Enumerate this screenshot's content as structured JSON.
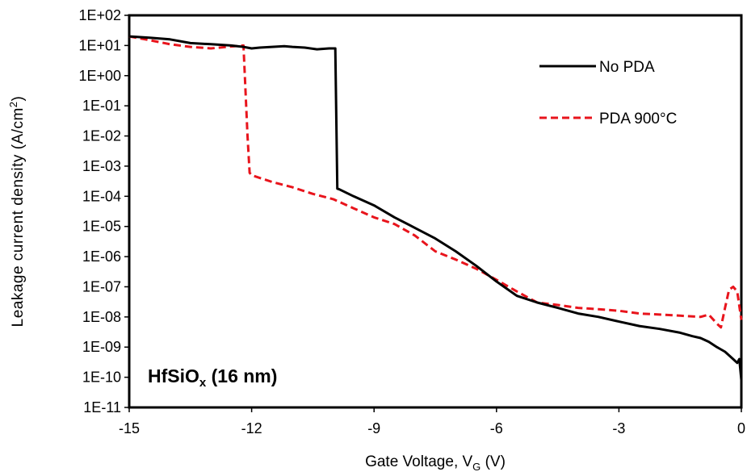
{
  "chart_data": {
    "type": "line",
    "xlabel_main": "Gate Voltage, V",
    "xlabel_sub": "G",
    "xlabel_tail": " (V)",
    "ylabel_main": "Leakage current density (A/cm",
    "ylabel_sup": "2",
    "ylabel_tail": ")",
    "xlim": [
      -15,
      0
    ],
    "ylim": [
      1e-11,
      100
    ],
    "y_scale": "log",
    "x_ticks": [
      -15,
      -12,
      -9,
      -6,
      -3,
      0
    ],
    "x_tick_labels": [
      "-15",
      "-12",
      "-9",
      "-6",
      "-3",
      "0"
    ],
    "y_ticks": [
      100.0,
      10.0,
      1.0,
      0.1,
      0.01,
      0.001,
      0.0001,
      1e-05,
      1e-06,
      1e-07,
      1e-08,
      1e-09,
      1e-10,
      1e-11
    ],
    "y_tick_labels": [
      "1E+02",
      "1E+01",
      "1E+00",
      "1E-01",
      "1E-02",
      "1E-03",
      "1E-04",
      "1E-05",
      "1E-06",
      "1E-07",
      "1E-08",
      "1E-09",
      "1E-10",
      "1E-11"
    ],
    "grid": false,
    "legend_position": "top-right",
    "annotation": {
      "main": "HfSiO",
      "sub": "x",
      "tail": "  (16 nm)"
    },
    "series": [
      {
        "name": "No PDA",
        "color": "#000000",
        "style": "solid",
        "x": [
          -15,
          -14.5,
          -14,
          -13.5,
          -13,
          -12.5,
          -12.2,
          -12,
          -11.8,
          -11.5,
          -11.2,
          -11,
          -10.7,
          -10.4,
          -10.1,
          -9.95,
          -9.9,
          -9.85,
          -9.5,
          -9,
          -8.5,
          -8,
          -7.5,
          -7,
          -6.5,
          -6,
          -5.5,
          -5,
          -4.5,
          -4,
          -3.5,
          -3,
          -2.5,
          -2,
          -1.5,
          -1.2,
          -1,
          -0.8,
          -0.6,
          -0.4,
          -0.2,
          -0.1,
          -0.05,
          0
        ],
        "y": [
          20,
          18,
          16,
          12,
          11,
          10,
          9,
          8,
          8.5,
          9,
          9.5,
          9,
          8.5,
          7.5,
          8,
          8,
          0.00018,
          0.00017,
          0.0001,
          5e-05,
          2e-05,
          9e-06,
          4e-06,
          1.5e-06,
          5e-07,
          1.5e-07,
          5e-08,
          3e-08,
          2e-08,
          1.3e-08,
          1e-08,
          7e-09,
          5e-09,
          4e-09,
          3e-09,
          2.3e-09,
          2e-09,
          1.5e-09,
          1e-09,
          7e-10,
          4e-10,
          3e-10,
          4e-10,
          8e-11
        ]
      },
      {
        "name": "PDA 900°C",
        "color": "#e8141c",
        "style": "dashed",
        "x": [
          -15,
          -14.5,
          -14,
          -13.5,
          -13,
          -12.6,
          -12.2,
          -12.1,
          -12.05,
          -12,
          -11.5,
          -11,
          -10.5,
          -10,
          -9.5,
          -9,
          -8.5,
          -8,
          -7.5,
          -7,
          -6.5,
          -6,
          -5.5,
          -5,
          -4.5,
          -4,
          -3.5,
          -3,
          -2.5,
          -2,
          -1.5,
          -1,
          -0.8,
          -0.6,
          -0.5,
          -0.4,
          -0.3,
          -0.2,
          -0.1,
          0
        ],
        "y": [
          20,
          15,
          11,
          9,
          8,
          9,
          10,
          0.01,
          0.0006,
          0.0005,
          0.0003,
          0.0002,
          0.00012,
          8e-05,
          4e-05,
          2e-05,
          1.2e-05,
          5e-06,
          1.5e-06,
          8e-07,
          4e-07,
          1.7e-07,
          7e-08,
          3e-08,
          2.5e-08,
          2e-08,
          1.8e-08,
          1.6e-08,
          1.3e-08,
          1.2e-08,
          1.1e-08,
          1e-08,
          1.2e-08,
          6e-09,
          4.5e-09,
          2e-08,
          8e-08,
          1e-07,
          7e-08,
          8e-09
        ]
      }
    ]
  }
}
